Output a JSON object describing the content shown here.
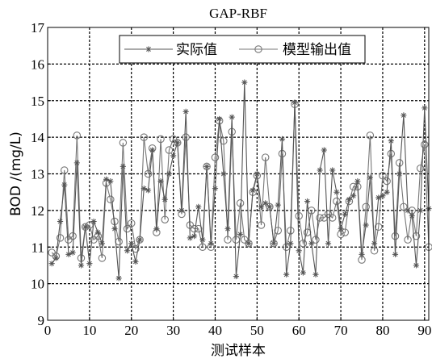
{
  "chart_data": {
    "type": "line",
    "title": "GAP-RBF",
    "xlabel": "测试样本",
    "ylabel": "BOD /(mg/L)",
    "xlim": [
      0,
      91
    ],
    "ylim": [
      9,
      17
    ],
    "xticks": [
      0,
      10,
      20,
      30,
      40,
      50,
      60,
      70,
      80,
      90
    ],
    "yticks": [
      9,
      10,
      11,
      12,
      13,
      14,
      15,
      16,
      17
    ],
    "grid": true,
    "legend_position": "top-center",
    "series": [
      {
        "name": "实际值",
        "marker": "asterisk",
        "color": "#555555",
        "x": [
          1,
          2,
          3,
          4,
          5,
          6,
          7,
          8,
          9,
          10,
          11,
          12,
          13,
          14,
          15,
          16,
          17,
          18,
          19,
          20,
          21,
          22,
          23,
          24,
          25,
          26,
          27,
          28,
          29,
          30,
          31,
          32,
          33,
          34,
          35,
          36,
          37,
          38,
          39,
          40,
          41,
          42,
          43,
          44,
          45,
          46,
          47,
          48,
          49,
          50,
          51,
          52,
          53,
          54,
          55,
          56,
          57,
          58,
          59,
          60,
          61,
          62,
          63,
          64,
          65,
          66,
          67,
          68,
          69,
          70,
          71,
          72,
          73,
          74,
          75,
          76,
          77,
          78,
          79,
          80,
          81,
          82,
          83,
          84,
          85,
          86,
          87,
          88,
          89,
          90,
          91
        ],
        "values": [
          10.55,
          10.7,
          11.7,
          12.7,
          10.8,
          10.85,
          13.3,
          10.5,
          11.55,
          10.55,
          11.7,
          11.4,
          11.1,
          12.85,
          12.8,
          11.5,
          10.15,
          13.2,
          10.9,
          11.1,
          10.6,
          11.2,
          12.6,
          12.55,
          13.65,
          11.5,
          12.8,
          12.3,
          13.0,
          13.5,
          13.85,
          12.0,
          14.7,
          11.25,
          11.3,
          12.1,
          11.2,
          13.2,
          11.1,
          12.6,
          14.5,
          13.0,
          11.5,
          14.55,
          10.2,
          11.35,
          15.5,
          11.1,
          12.55,
          13.0,
          12.1,
          12.2,
          12.1,
          11.1,
          12.15,
          13.95,
          10.25,
          11.1,
          14.95,
          10.9,
          10.3,
          12.25,
          11.1,
          10.25,
          13.1,
          13.65,
          11.1,
          13.1,
          12.5,
          11.5,
          11.9,
          12.3,
          12.4,
          12.8,
          10.8,
          11.6,
          12.9,
          11.1,
          12.35,
          12.4,
          12.5,
          13.9,
          10.8,
          13.0,
          14.6,
          12.0,
          11.85,
          10.5,
          12.0,
          14.8,
          12.05
        ]
      },
      {
        "name": "模型输出值",
        "marker": "circle",
        "color": "#555555",
        "x": [
          1,
          2,
          3,
          4,
          5,
          6,
          7,
          8,
          9,
          10,
          11,
          12,
          13,
          14,
          15,
          16,
          17,
          18,
          19,
          20,
          21,
          22,
          23,
          24,
          25,
          26,
          27,
          28,
          29,
          30,
          31,
          32,
          33,
          34,
          35,
          36,
          37,
          38,
          39,
          40,
          41,
          42,
          43,
          44,
          45,
          46,
          47,
          48,
          49,
          50,
          51,
          52,
          53,
          54,
          55,
          56,
          57,
          58,
          59,
          60,
          61,
          62,
          63,
          64,
          65,
          66,
          67,
          68,
          69,
          70,
          71,
          72,
          73,
          74,
          75,
          76,
          77,
          78,
          79,
          80,
          81,
          82,
          83,
          84,
          85,
          86,
          87,
          88,
          89,
          90,
          91
        ],
        "values": [
          10.85,
          10.75,
          11.25,
          13.1,
          11.2,
          11.3,
          14.05,
          10.7,
          11.55,
          11.6,
          11.2,
          11.3,
          10.7,
          12.75,
          12.3,
          11.7,
          11.15,
          13.85,
          11.5,
          11.65,
          10.95,
          11.2,
          14.0,
          13.0,
          13.7,
          11.4,
          13.95,
          11.75,
          13.65,
          13.95,
          13.85,
          11.9,
          14.0,
          11.6,
          11.5,
          11.5,
          11.0,
          13.2,
          11.0,
          13.45,
          14.45,
          13.9,
          11.2,
          14.15,
          11.2,
          12.2,
          11.2,
          11.1,
          12.5,
          12.95,
          11.6,
          13.45,
          12.1,
          11.1,
          11.45,
          13.55,
          11.0,
          11.45,
          14.9,
          11.85,
          11.1,
          11.4,
          12.0,
          11.2,
          11.8,
          11.8,
          11.9,
          11.8,
          12.25,
          11.35,
          11.4,
          12.25,
          12.65,
          12.65,
          10.65,
          12.1,
          14.05,
          10.9,
          11.55,
          12.95,
          12.8,
          13.55,
          11.3,
          13.3,
          12.1,
          11.2,
          12.0,
          11.3,
          13.15,
          13.8,
          11.0
        ]
      }
    ]
  }
}
